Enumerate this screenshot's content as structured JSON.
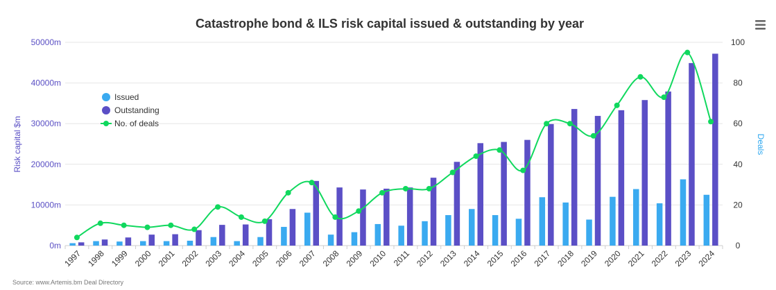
{
  "chart_data": {
    "type": "bar+line",
    "title": "Catastrophe bond & ILS risk capital issued & outstanding by year",
    "source": "Source: www.Artemis.bm Deal Directory",
    "y_left": {
      "label": "Risk capital $m",
      "range": [
        0,
        50000
      ],
      "ticks": [
        "0m",
        "10000m",
        "20000m",
        "30000m",
        "40000m",
        "50000m"
      ],
      "color": "#5a4fc4"
    },
    "y_right": {
      "label": "Deals",
      "range": [
        0,
        100
      ],
      "ticks": [
        "0",
        "20",
        "40",
        "60",
        "80",
        "100"
      ],
      "color": "#2ea8f0"
    },
    "categories": [
      "1997",
      "1998",
      "1999",
      "2000",
      "2001",
      "2002",
      "2003",
      "2004",
      "2005",
      "2006",
      "2007",
      "2008",
      "2009",
      "2010",
      "2011",
      "2012",
      "2013",
      "2014",
      "2015",
      "2016",
      "2017",
      "2018",
      "2019",
      "2020",
      "2021",
      "2022",
      "2023",
      "2024"
    ],
    "series": [
      {
        "name": "Issued",
        "kind": "bar",
        "axis": "left",
        "color": "#3aaaf0",
        "values": [
          600,
          1100,
          1000,
          1100,
          1100,
          1200,
          2100,
          1100,
          2100,
          4600,
          8100,
          2700,
          3300,
          5300,
          4900,
          6000,
          7500,
          9000,
          7500,
          6600,
          11900,
          10600,
          6400,
          12000,
          13900,
          10400,
          16300,
          12500
        ]
      },
      {
        "name": "Outstanding",
        "kind": "bar",
        "axis": "left",
        "color": "#5b4fc6",
        "values": [
          800,
          1500,
          2000,
          2700,
          2800,
          3800,
          5100,
          5200,
          6500,
          9000,
          15900,
          14300,
          13800,
          14000,
          14300,
          16700,
          20600,
          25200,
          25500,
          26000,
          29900,
          33600,
          31900,
          33300,
          35800,
          37900,
          44900,
          47200
        ]
      },
      {
        "name": "No. of deals",
        "kind": "line",
        "axis": "right",
        "color": "#10d85e",
        "values": [
          4,
          11,
          10,
          9,
          10,
          8,
          19,
          14,
          12,
          26,
          31,
          14,
          17,
          26,
          28,
          28,
          36,
          44,
          47,
          37,
          60,
          60,
          54,
          69,
          83,
          73,
          95,
          61
        ]
      }
    ],
    "legend": {
      "position": "top-left",
      "items": [
        "Issued",
        "Outstanding",
        "No. of deals"
      ]
    },
    "grid": true
  },
  "ui": {
    "menu_icon": "hamburger-menu-icon"
  }
}
